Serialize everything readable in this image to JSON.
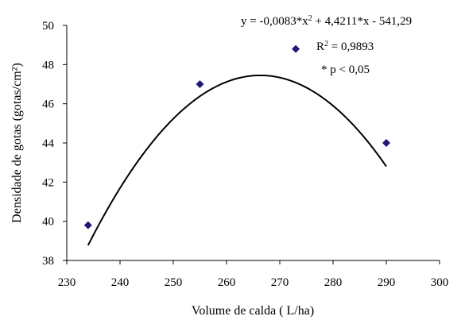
{
  "chart_data": {
    "type": "scatter",
    "xlabel": "Volume de calda ( L/ha)",
    "ylabel": "Densidade de gotas (gotas/cm²)",
    "xlim": [
      230,
      300
    ],
    "ylim": [
      38,
      50
    ],
    "x_ticks": [
      230,
      240,
      250,
      260,
      270,
      280,
      290,
      300
    ],
    "y_ticks": [
      38,
      40,
      42,
      44,
      46,
      48,
      50
    ],
    "grid": false,
    "points": [
      {
        "x": 234,
        "y": 39.8
      },
      {
        "x": 255,
        "y": 47.0
      },
      {
        "x": 273,
        "y": 48.8
      },
      {
        "x": 290,
        "y": 44.0
      }
    ],
    "fit": {
      "type": "quadratic",
      "a": -0.0083,
      "b": 4.4211,
      "c": -541.29,
      "x_range": [
        234,
        290
      ]
    },
    "marker_color": "#1f1a78",
    "line_color": "#000000",
    "annotations": {
      "equation_prefix": "y = -0,0083*x",
      "equation_exp": "2",
      "equation_suffix": " + 4,4211*x - 541,29",
      "r2_label": "R",
      "r2_exp": "2",
      "r2_value": " = 0,9893",
      "significance": "* p < 0,05"
    }
  }
}
